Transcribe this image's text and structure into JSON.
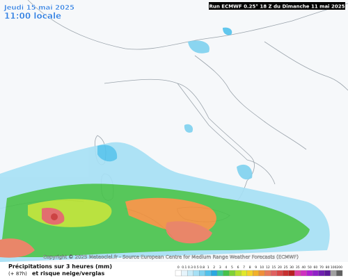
{
  "header": {
    "date": "Jeudi 15 mai 2025",
    "time": "11:00 locale",
    "run": "Run ECMWF 0.25° 18 Z du Dimanche 11 mai 2025"
  },
  "copyright": "Copyright © 2025 Meteociel.fr - Source European Centre for Medium Range Weather Forecasts (ECMWF)",
  "footer": {
    "title": "Précipitations sur 3 heures (mm)",
    "lead": "(+ 87h)",
    "subtitle": "et risque neige/verglas"
  },
  "legend": {
    "labels": [
      "0",
      "0.1",
      "0.3",
      "0.5",
      "0.8",
      "1",
      "2",
      "3",
      "4",
      "5",
      "6",
      "7",
      "8",
      "9",
      "10",
      "12",
      "15",
      "20",
      "25",
      "30",
      "35",
      "40",
      "50",
      "60",
      "70",
      "80",
      "100",
      "200"
    ],
    "colors": [
      "#ffffff",
      "#e6f4fb",
      "#c8ebf8",
      "#a6e0f5",
      "#7fd2f0",
      "#52c2ec",
      "#2aa9e0",
      "#3fc89a",
      "#46c24a",
      "#7fd235",
      "#b4e02c",
      "#e0e82a",
      "#f4d22a",
      "#f2b02a",
      "#ef8f3a",
      "#e87a5a",
      "#e06060",
      "#d84848",
      "#c83030",
      "#b82020",
      "#e040a0",
      "#d030c0",
      "#b020d0",
      "#9020c8",
      "#7020b0",
      "#5a1a98",
      "#a0a0a0",
      "#606060"
    ]
  }
}
